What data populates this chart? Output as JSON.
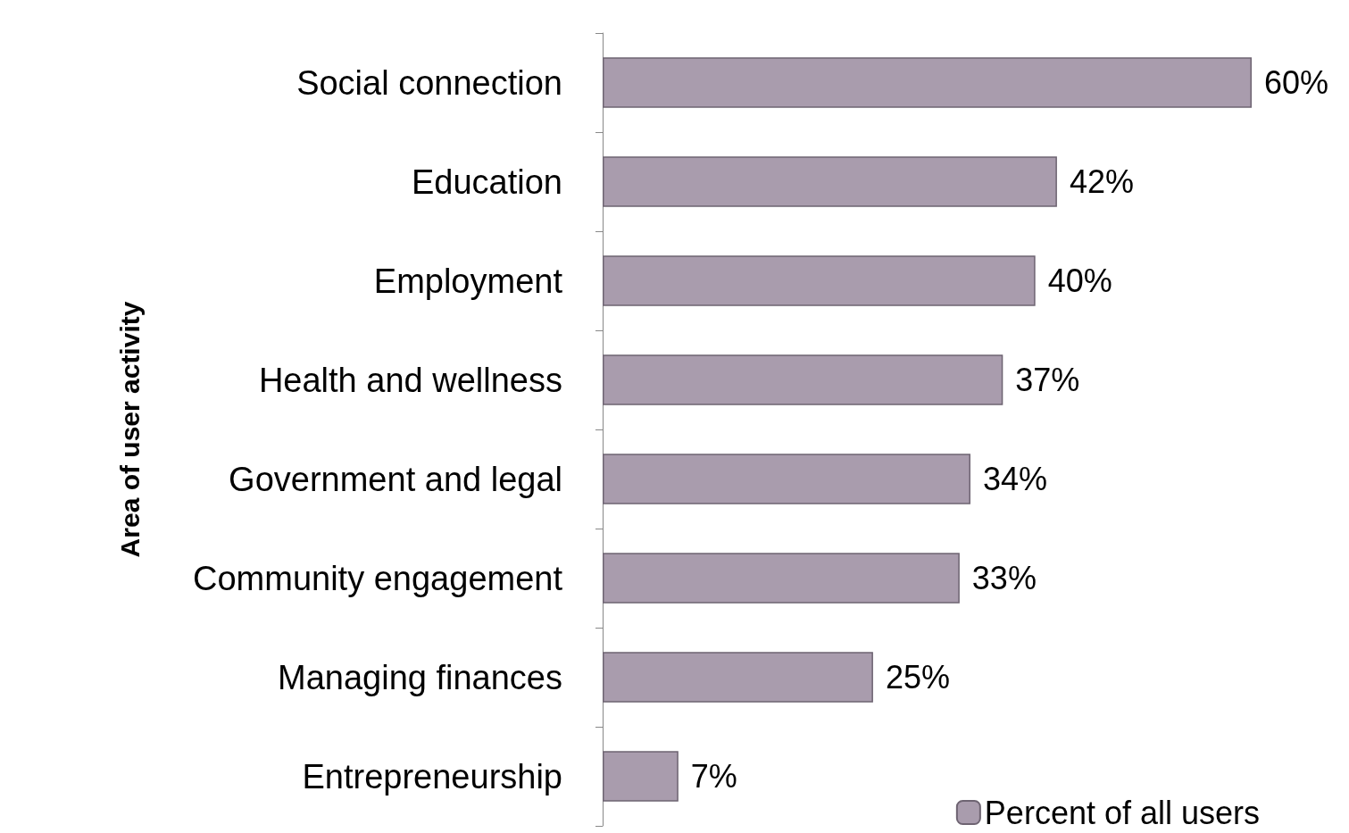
{
  "chart_data": {
    "type": "bar",
    "orientation": "horizontal",
    "ylabel": "Area of user activity",
    "categories": [
      "Social connection",
      "Education",
      "Employment",
      "Health and wellness",
      "Government and legal",
      "Community engagement",
      "Managing finances",
      "Entrepreneurship"
    ],
    "series": [
      {
        "name": "Percent of all users",
        "color": "#a99cad",
        "values": [
          60,
          42,
          40,
          37,
          34,
          33,
          25,
          7
        ],
        "value_labels": [
          "60%",
          "42%",
          "40%",
          "37%",
          "34%",
          "33%",
          "25%",
          "7%"
        ]
      }
    ],
    "legend": "bottom right"
  }
}
